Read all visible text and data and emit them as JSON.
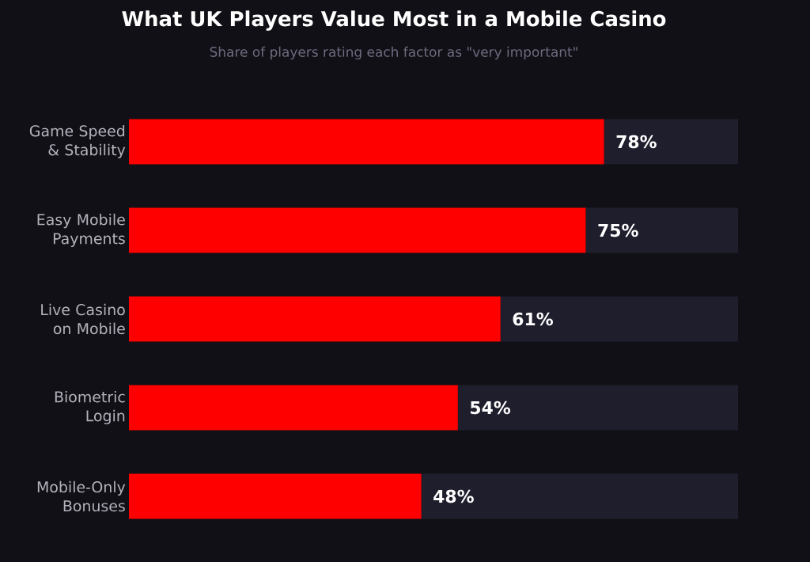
{
  "chart_data": {
    "type": "bar",
    "orientation": "horizontal",
    "stacked": true,
    "title": "What UK Players Value Most in a Mobile Casino",
    "subtitle": "Share of players rating each factor as \"very important\"",
    "categories": [
      "Game Speed & Stability",
      "Easy Mobile Payments",
      "Live Casino on Mobile",
      "Biometric Login",
      "Mobile-Only Bonuses"
    ],
    "series": [
      {
        "color": "#ff0000",
        "values": [
          78,
          75,
          61,
          54,
          48
        ],
        "value_labels": [
          "78%",
          "75%",
          "61%",
          "54%",
          "48%"
        ]
      },
      {
        "color": "#1f1e2d",
        "values": [
          22,
          25,
          39,
          46,
          52
        ]
      }
    ],
    "xlim": [
      0,
      100
    ],
    "tick_labels": "y"
  }
}
